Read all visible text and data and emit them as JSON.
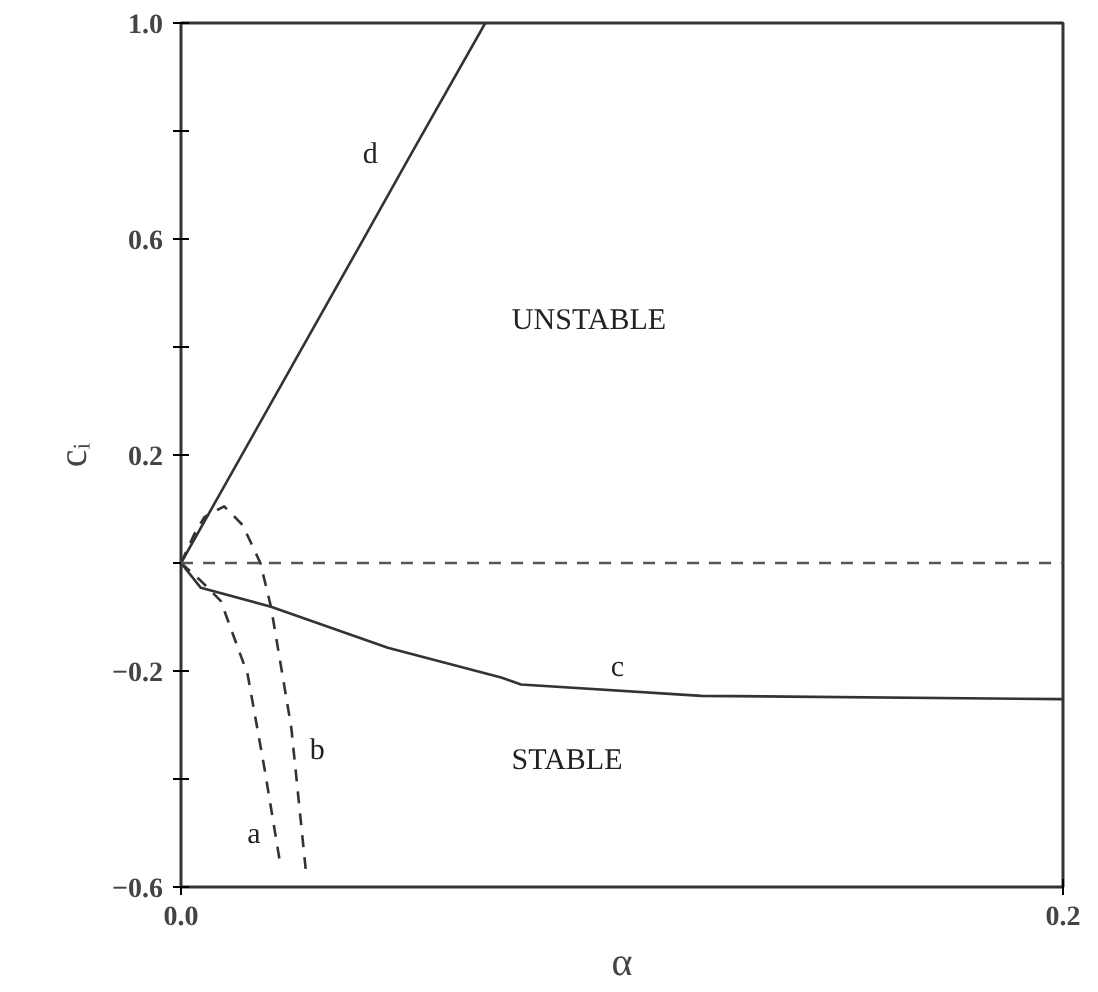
{
  "chart_data": {
    "type": "line",
    "xlabel": "α",
    "ylabel": "cᵢ",
    "xlim": [
      0,
      0.2
    ],
    "ylim": [
      -0.6,
      1.0
    ],
    "xticks": [
      {
        "value": 0,
        "label": "0.0"
      },
      {
        "value": 0.2,
        "label": "0.2"
      }
    ],
    "yticks": [
      {
        "value": -0.6,
        "label": "−0.6"
      },
      {
        "value": -0.4,
        "label": null
      },
      {
        "value": -0.2,
        "label": "−0.2"
      },
      {
        "value": 0,
        "label": null
      },
      {
        "value": 0.2,
        "label": "0.2"
      },
      {
        "value": 0.4,
        "label": null
      },
      {
        "value": 0.6,
        "label": "0.6"
      },
      {
        "value": 0.8,
        "label": null
      },
      {
        "value": 1.0,
        "label": "1.0"
      }
    ],
    "grid": false,
    "legend": false,
    "marker": "none",
    "series": [
      {
        "name": "d",
        "color": "#333333",
        "line_style": "solid",
        "x": [
          0,
          0.02,
          0.04,
          0.052,
          0.069
        ],
        "values": [
          0,
          0.29,
          0.58,
          0.755,
          1.0
        ]
      },
      {
        "name": "b",
        "color": "#333333",
        "line_style": "dashed",
        "x": [
          0,
          0.003,
          0.0053,
          0.0098,
          0.014,
          0.018,
          0.0204,
          0.025,
          0.0284
        ],
        "values": [
          0,
          0.053,
          0.085,
          0.105,
          0.07,
          0,
          -0.081,
          -0.304,
          -0.577
        ]
      },
      {
        "name": "a",
        "color": "#333333",
        "line_style": "dashed",
        "x": [
          0,
          0.0045,
          0.009,
          0.0151,
          0.0189,
          0.0224
        ],
        "values": [
          0,
          -0.033,
          -0.07,
          -0.206,
          -0.379,
          -0.552
        ]
      },
      {
        "name": "c",
        "color": "#333333",
        "line_style": "solid",
        "x": [
          0,
          0.0045,
          0.0204,
          0.0469,
          0.0726,
          0.0771,
          0.118,
          0.1995,
          0.2
        ],
        "values": [
          0,
          -0.046,
          -0.081,
          -0.157,
          -0.212,
          -0.225,
          -0.246,
          -0.252,
          -0.252
        ]
      }
    ],
    "ref_lines": [
      {
        "axis": "y",
        "value": 0,
        "label": null,
        "color": "#555555",
        "line_style": "dashed"
      }
    ],
    "annotations": [
      "UNSTABLE",
      "STABLE"
    ]
  }
}
